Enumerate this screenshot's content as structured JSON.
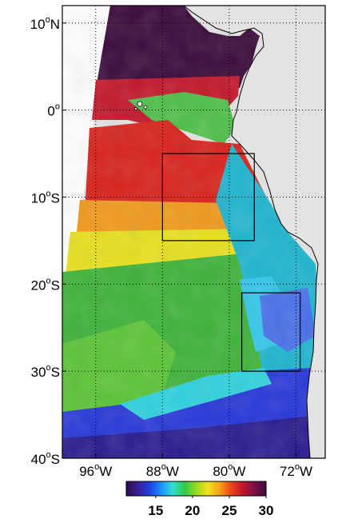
{
  "map": {
    "lat_ticks": [
      {
        "value": 10,
        "label": "10",
        "hemi": "N"
      },
      {
        "value": 0,
        "label": "0",
        "hemi": ""
      },
      {
        "value": -10,
        "label": "10",
        "hemi": "S"
      },
      {
        "value": -20,
        "label": "20",
        "hemi": "S"
      },
      {
        "value": -30,
        "label": "30",
        "hemi": "S"
      },
      {
        "value": -40,
        "label": "40",
        "hemi": "S"
      }
    ],
    "lon_ticks": [
      {
        "value": -96,
        "label": "96",
        "hemi": "W"
      },
      {
        "value": -88,
        "label": "88",
        "hemi": "W"
      },
      {
        "value": -80,
        "label": "80",
        "hemi": "W"
      },
      {
        "value": -72,
        "label": "72",
        "hemi": "W"
      }
    ],
    "degree_symbol": "o",
    "boxes": [
      {
        "name": "northern-box",
        "lon": [
          -88,
          -77
        ],
        "lat": [
          -15,
          -5
        ]
      },
      {
        "name": "southern-box",
        "lon": [
          -78.5,
          -71.5
        ],
        "lat": [
          -30,
          -21
        ]
      }
    ],
    "colors": {
      "land": "#e3e3e3",
      "frame": "#000000",
      "box": "#000000"
    }
  },
  "colorbar": {
    "ticks": [
      "15",
      "20",
      "25",
      "30"
    ],
    "tick_values": [
      15,
      20,
      25,
      30
    ],
    "range": [
      11,
      30
    ],
    "colormap": [
      "#2b0a4d",
      "#3a1f96",
      "#1f3fe0",
      "#1e90ff",
      "#33e0d0",
      "#2fc94a",
      "#9ad81e",
      "#f2e21c",
      "#f7a21b",
      "#e8451b",
      "#c0172d",
      "#7a0e48",
      "#3d0b3a"
    ]
  }
}
